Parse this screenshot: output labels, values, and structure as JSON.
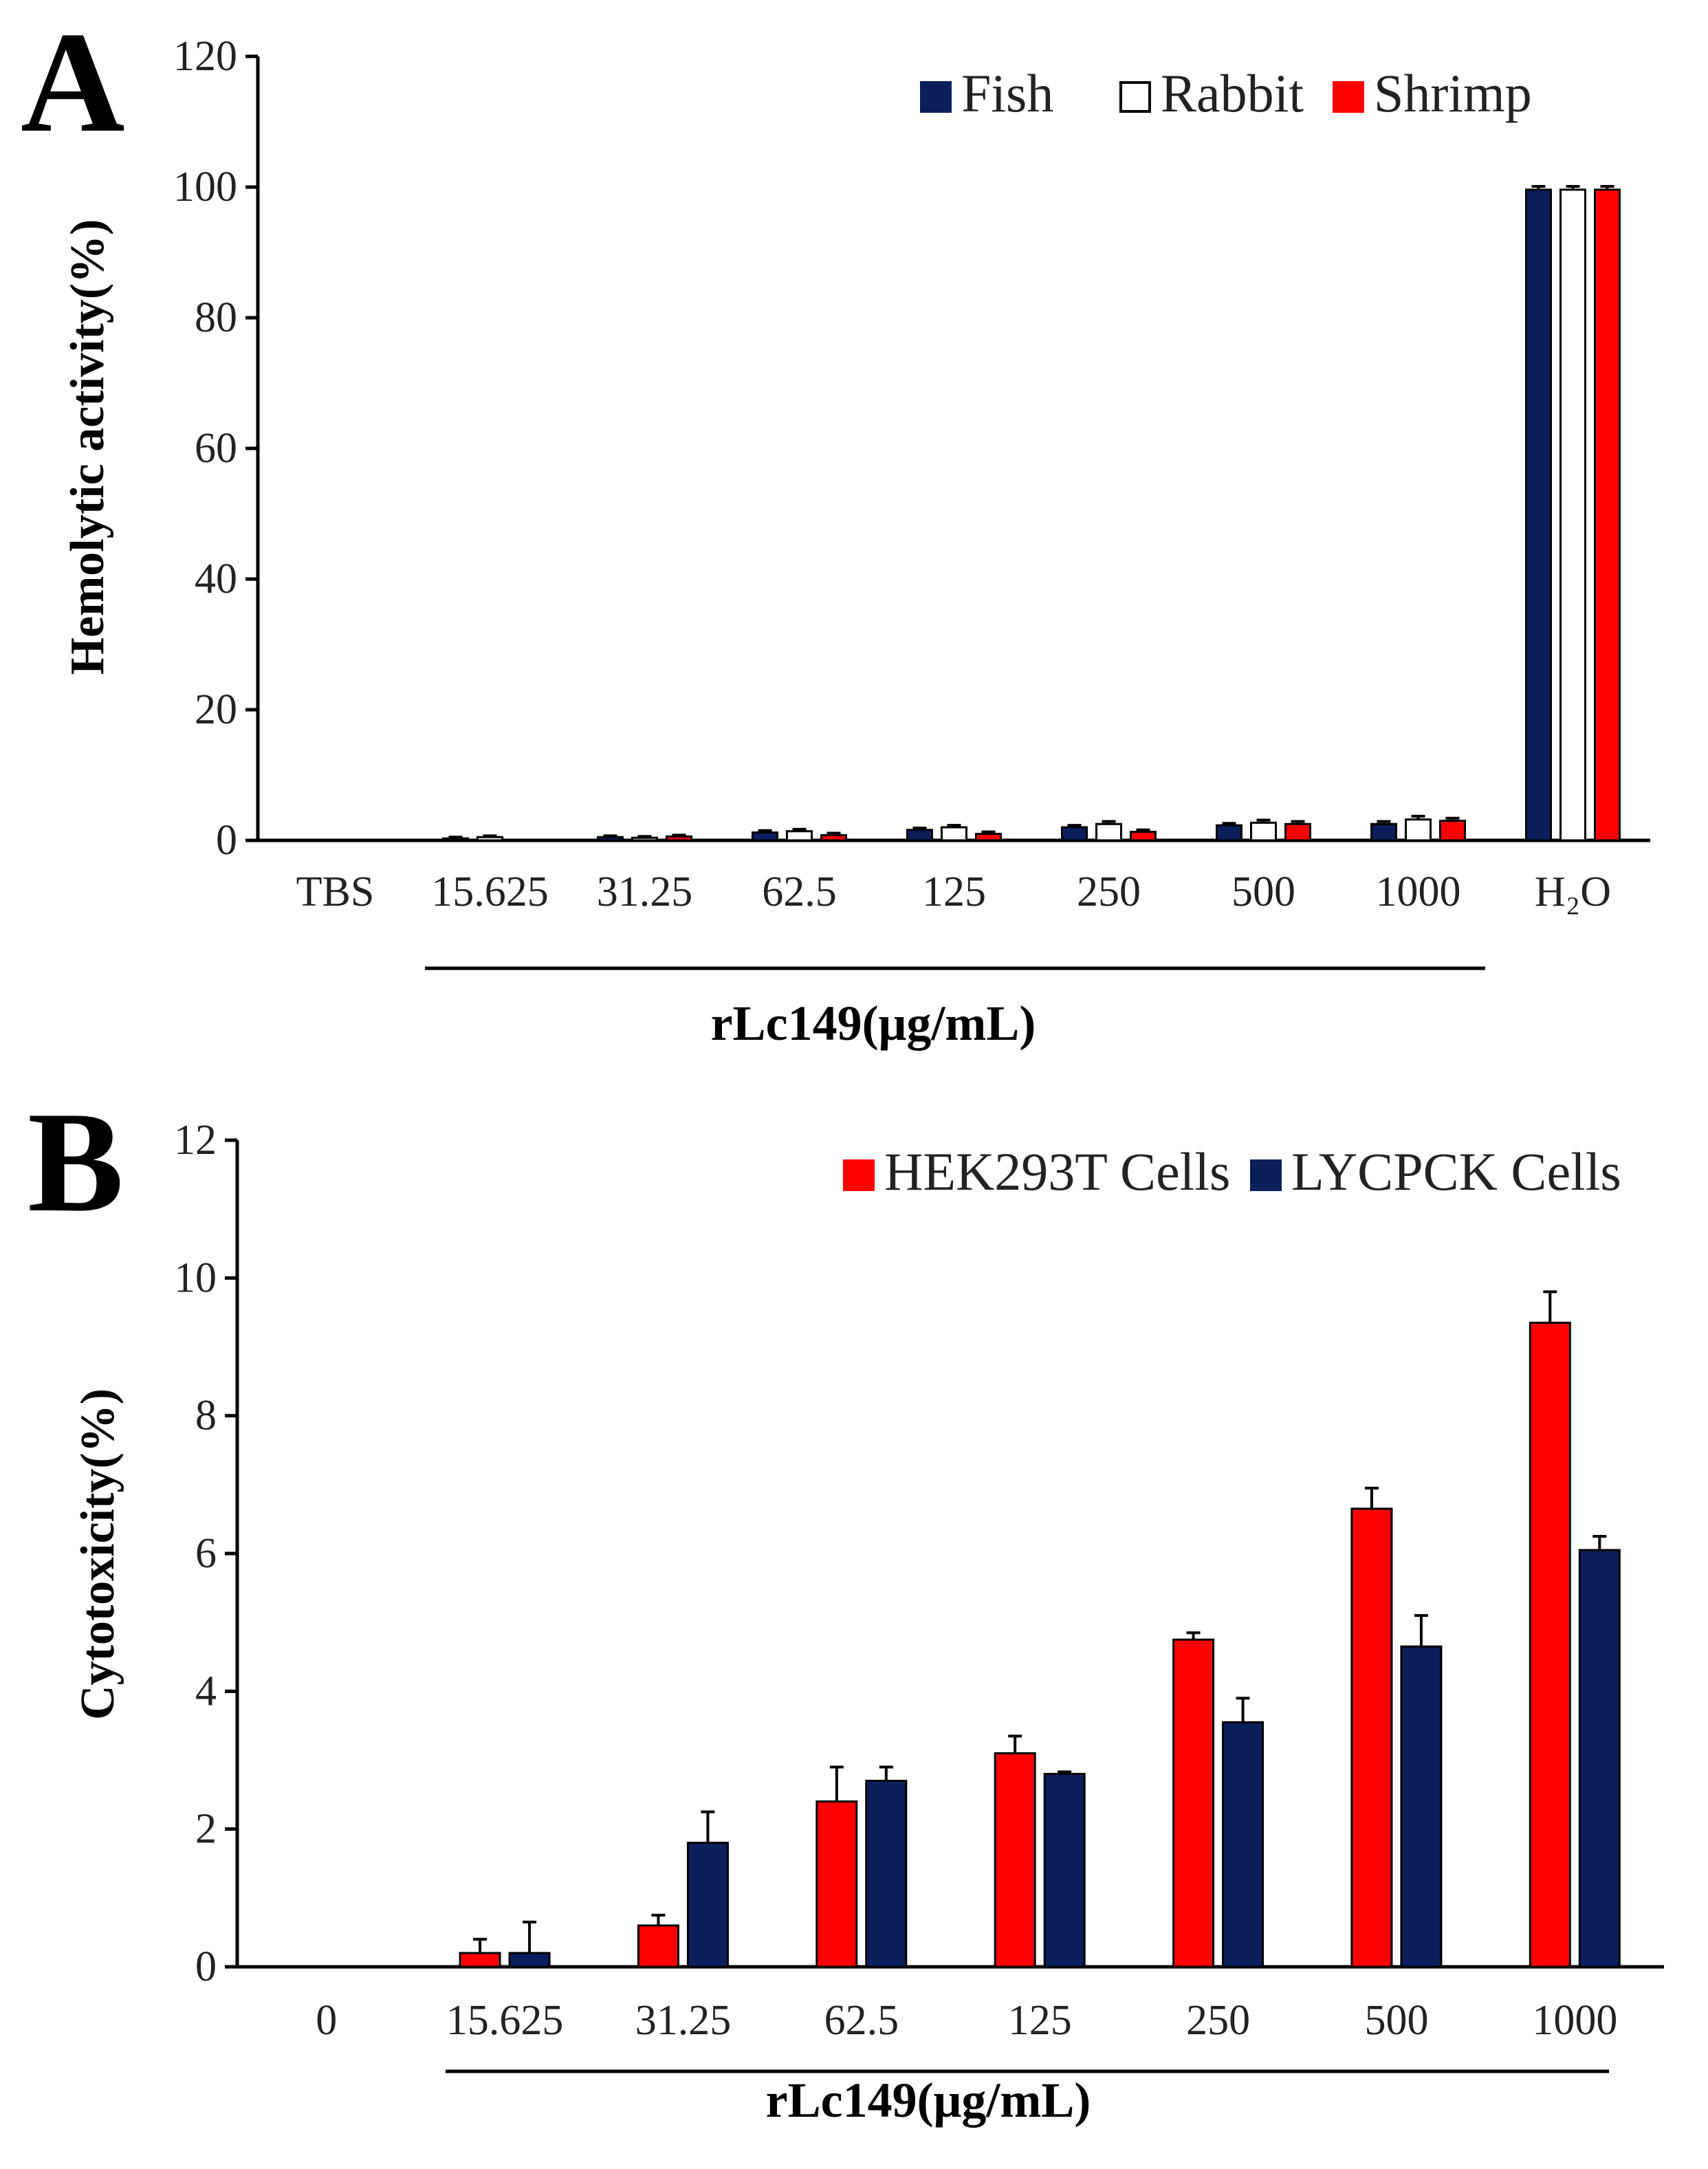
{
  "colors": {
    "navy": "#0b1f5c",
    "red": "#ff0000",
    "white": "#ffffff",
    "black": "#000000"
  },
  "chart_data": [
    {
      "type": "bar",
      "panel_label": "A",
      "ylabel": "Hemolytic activity(%)",
      "xlabel": "rLc149(μg/mL)",
      "categories": [
        "TBS",
        "15.625",
        "31.25",
        "62.5",
        "125",
        "250",
        "500",
        "1000",
        "H₂O"
      ],
      "ylim": [
        0,
        120
      ],
      "yticks": [
        "0",
        "20",
        "40",
        "60",
        "80",
        "100",
        "120"
      ],
      "legend_position": "top-right",
      "series": [
        {
          "name": "Fish",
          "color": "#0b1f5c",
          "values": [
            0,
            0.3,
            0.5,
            1.2,
            1.6,
            2.0,
            2.3,
            2.5,
            99.6
          ],
          "errors": [
            0,
            0.2,
            0.2,
            0.3,
            0.3,
            0.3,
            0.3,
            0.4,
            0.5
          ]
        },
        {
          "name": "Rabbit",
          "color": "#ffffff",
          "values": [
            0,
            0.5,
            0.4,
            1.4,
            2.0,
            2.5,
            2.7,
            3.2,
            99.6
          ],
          "errors": [
            0,
            0.2,
            0.2,
            0.3,
            0.3,
            0.4,
            0.4,
            0.5,
            0.5
          ]
        },
        {
          "name": "Shrimp",
          "color": "#ff0000",
          "values": [
            0,
            0,
            0.6,
            0.8,
            1.0,
            1.3,
            2.5,
            3.0,
            99.6
          ],
          "errors": [
            0,
            0,
            0.2,
            0.3,
            0.3,
            0.3,
            0.4,
            0.4,
            0.5
          ]
        }
      ]
    },
    {
      "type": "bar",
      "panel_label": "B",
      "ylabel": "Cytotoxicity(%)",
      "xlabel": "rLc149(μg/mL)",
      "categories": [
        "0",
        "15.625",
        "31.25",
        "62.5",
        "125",
        "250",
        "500",
        "1000"
      ],
      "ylim": [
        0,
        12
      ],
      "yticks": [
        "0",
        "2",
        "4",
        "6",
        "8",
        "10",
        "12"
      ],
      "legend_position": "top-right",
      "series": [
        {
          "name": "HEK293T Cells",
          "color": "#ff0000",
          "values": [
            0,
            0.2,
            0.6,
            2.4,
            3.1,
            4.75,
            6.65,
            9.35
          ],
          "errors": [
            0,
            0.2,
            0.15,
            0.5,
            0.25,
            0.1,
            0.3,
            0.45
          ]
        },
        {
          "name": "LYCPCK Cells",
          "color": "#0b1f5c",
          "values": [
            0,
            0.2,
            1.8,
            2.7,
            2.8,
            3.55,
            4.65,
            6.05
          ],
          "errors": [
            0,
            0.45,
            0.45,
            0.2,
            0.03,
            0.35,
            0.45,
            0.2
          ]
        }
      ]
    }
  ]
}
